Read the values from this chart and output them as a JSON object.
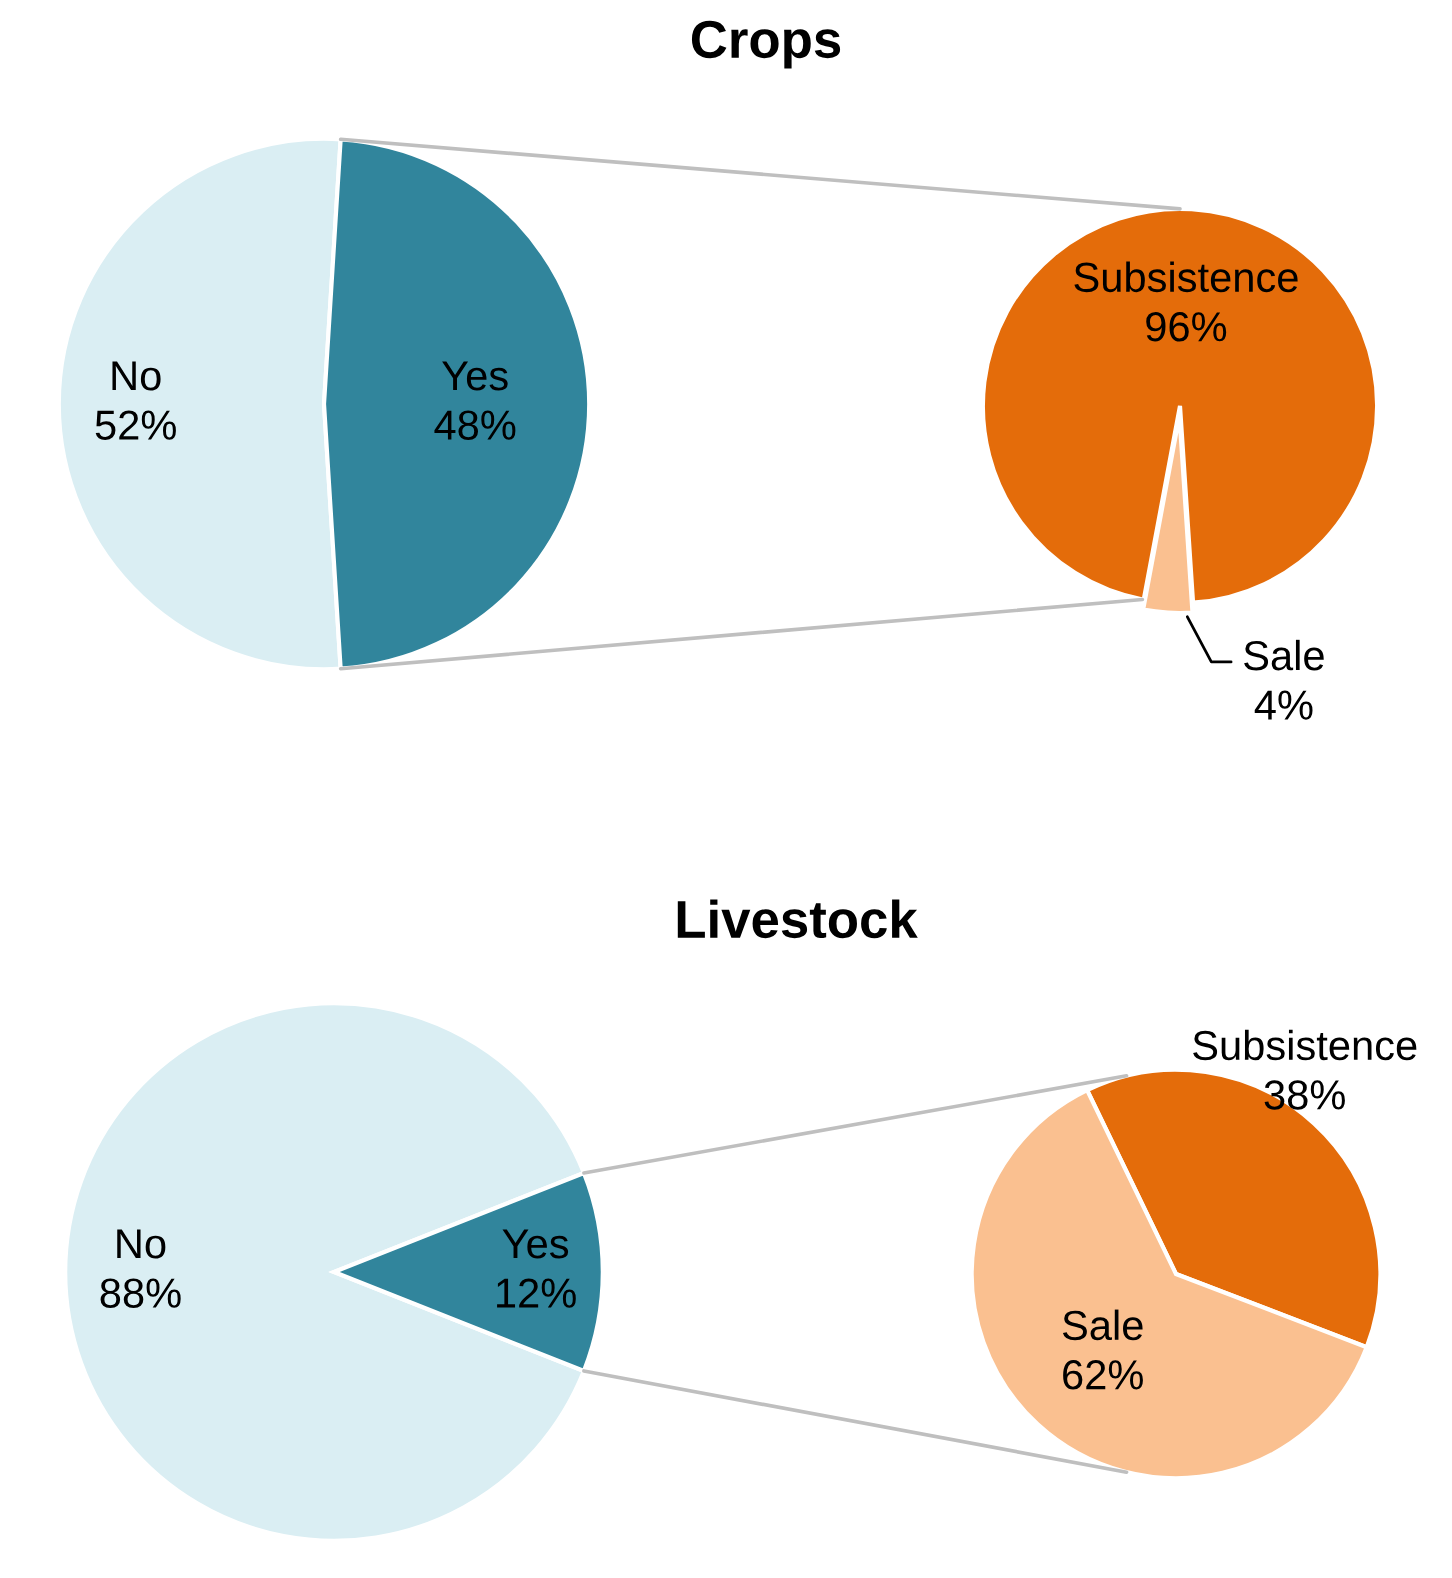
{
  "chart_data": [
    {
      "type": "pie",
      "title": "Crops",
      "categories": [
        "No",
        "Yes"
      ],
      "values": [
        52,
        48
      ],
      "colors": [
        "#daeef3",
        "#31859c"
      ],
      "value_labels": [
        "52%",
        "48%"
      ]
    },
    {
      "type": "pie",
      "categories": [
        "Subsistence",
        "Sale"
      ],
      "values": [
        96,
        4
      ],
      "colors": [
        "#e46c0a",
        "#fac090"
      ],
      "value_labels": [
        "96%",
        "4%"
      ]
    },
    {
      "type": "pie",
      "title": "Livestock",
      "categories": [
        "No",
        "Yes"
      ],
      "values": [
        88,
        12
      ],
      "colors": [
        "#daeef3",
        "#31859c"
      ],
      "value_labels": [
        "88%",
        "12%"
      ]
    },
    {
      "type": "pie",
      "categories": [
        "Subsistence",
        "Sale"
      ],
      "values": [
        38,
        62
      ],
      "colors": [
        "#e46c0a",
        "#fac090"
      ],
      "value_labels": [
        "38%",
        "62%"
      ]
    }
  ]
}
